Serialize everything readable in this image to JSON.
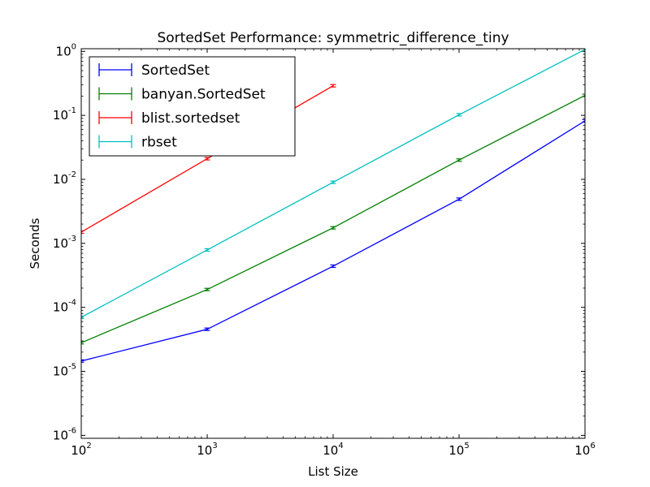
{
  "chart_data": {
    "type": "line",
    "title": "SortedSet Performance: symmetric_difference_tiny",
    "xlabel": "List Size",
    "ylabel": "Seconds",
    "xscale": "log",
    "yscale": "log",
    "xlim": [
      100,
      1000000
    ],
    "ylim": [
      9e-07,
      1.1
    ],
    "x_ticks": [
      {
        "base": "10",
        "exp": "2",
        "value": 100
      },
      {
        "base": "10",
        "exp": "3",
        "value": 1000
      },
      {
        "base": "10",
        "exp": "4",
        "value": 10000
      },
      {
        "base": "10",
        "exp": "5",
        "value": 100000
      },
      {
        "base": "10",
        "exp": "6",
        "value": 1000000
      }
    ],
    "y_ticks": [
      {
        "base": "10",
        "exp": "-6",
        "value": 1e-06
      },
      {
        "base": "10",
        "exp": "-5",
        "value": 1e-05
      },
      {
        "base": "10",
        "exp": "-4",
        "value": 0.0001
      },
      {
        "base": "10",
        "exp": "-3",
        "value": 0.001
      },
      {
        "base": "10",
        "exp": "-2",
        "value": 0.01
      },
      {
        "base": "10",
        "exp": "-1",
        "value": 0.1
      },
      {
        "base": "10",
        "exp": "0",
        "value": 1
      }
    ],
    "grid": false,
    "legend_position": "top-left",
    "series": [
      {
        "name": "SortedSet",
        "color": "#0000ff",
        "x": [
          100,
          1000,
          10000,
          100000,
          1000000
        ],
        "y": [
          1.45e-05,
          4.55e-05,
          0.00044,
          0.0049,
          0.082
        ]
      },
      {
        "name": "banyan.SortedSet",
        "color": "#008000",
        "x": [
          100,
          1000,
          10000,
          100000,
          1000000
        ],
        "y": [
          2.8e-05,
          0.00019,
          0.00175,
          0.02,
          0.205
        ]
      },
      {
        "name": "blist.sortedset",
        "color": "#ff0000",
        "x": [
          100,
          1000,
          10000
        ],
        "y": [
          0.0015,
          0.021,
          0.29
        ]
      },
      {
        "name": "rbset",
        "color": "#00bfbf",
        "x": [
          100,
          1000,
          10000,
          100000,
          1000000
        ],
        "y": [
          7e-05,
          0.00079,
          0.009,
          0.102,
          1.07
        ]
      }
    ]
  }
}
